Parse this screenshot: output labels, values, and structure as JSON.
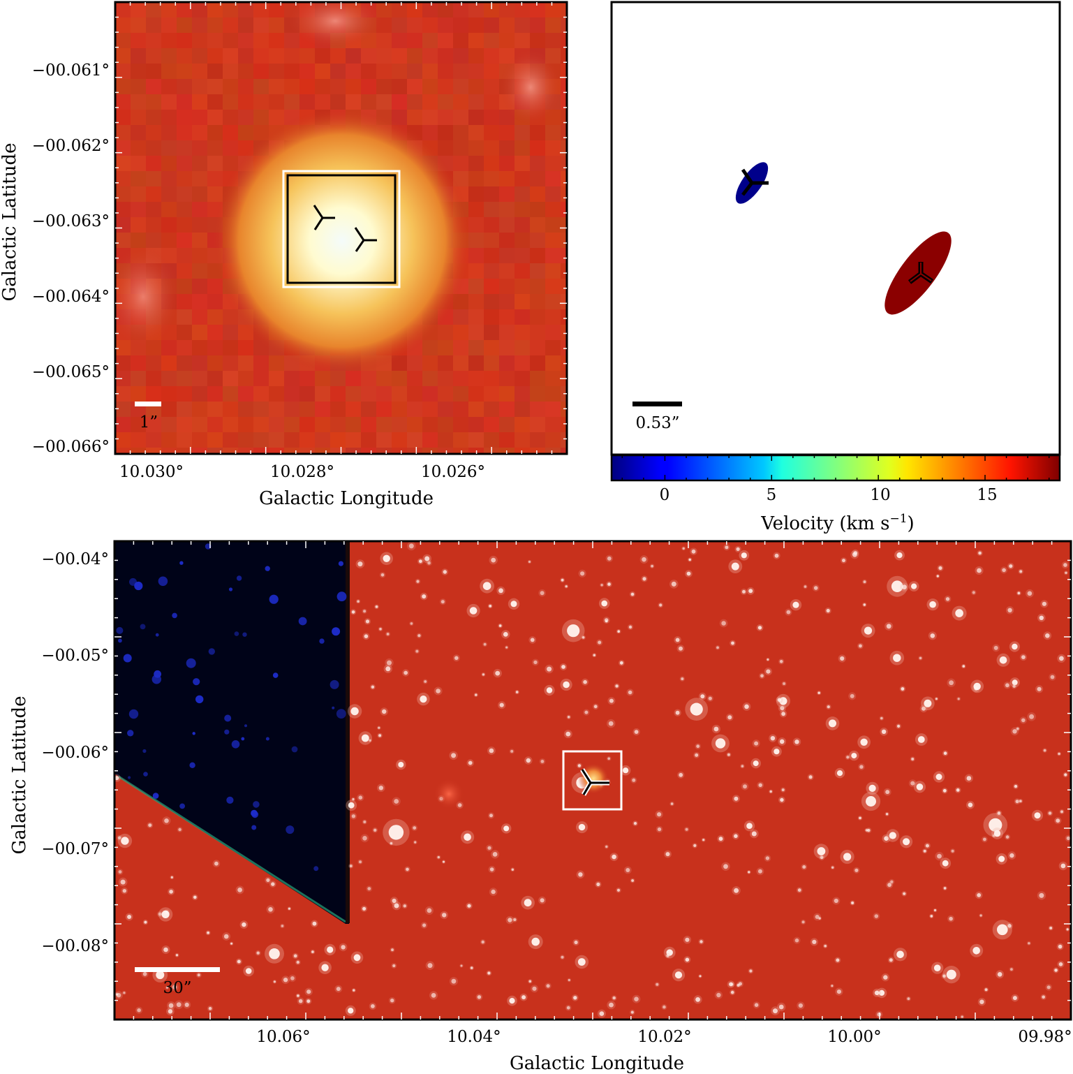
{
  "panels": {
    "top_left": {
      "xlabel": "Galactic Longitude",
      "ylabel": "Galactic Latitude",
      "xticks": [
        "10.030°",
        "10.028°",
        "10.026°"
      ],
      "yticks": [
        "−00.061°",
        "−00.062°",
        "−00.063°",
        "−00.064°",
        "−00.065°",
        "−00.066°"
      ],
      "scalebar_label": "1”",
      "markers": 2,
      "colors": {
        "background": "#c8321c",
        "core": "#fffbd8",
        "frame": "#000000"
      }
    },
    "top_right": {
      "scalebar_label": "0.53”",
      "colorbar": {
        "label": "Velocity (km s",
        "label_sup": "−1",
        "label_close": ")",
        "ticks": [
          "0",
          "5",
          "10",
          "15"
        ],
        "range": [
          -2.5,
          18.5
        ],
        "colormap": "jet"
      },
      "ellipses": [
        {
          "name": "blue-source",
          "velocity": -2.0,
          "color": "#00008b"
        },
        {
          "name": "red-source",
          "velocity": 18.0,
          "color": "#8b0000"
        }
      ]
    },
    "bottom": {
      "xlabel": "Galactic Longitude",
      "ylabel": "Galactic Latitude",
      "xticks": [
        "10.06°",
        "10.04°",
        "10.02°",
        "10.00°",
        "09.98°"
      ],
      "yticks": [
        "−00.04°",
        "−00.05°",
        "−00.06°",
        "−00.07°",
        "−00.08°"
      ],
      "scalebar_label": "30”",
      "colors": {
        "background": "#c8311c",
        "blank_region": "#000318"
      }
    }
  }
}
